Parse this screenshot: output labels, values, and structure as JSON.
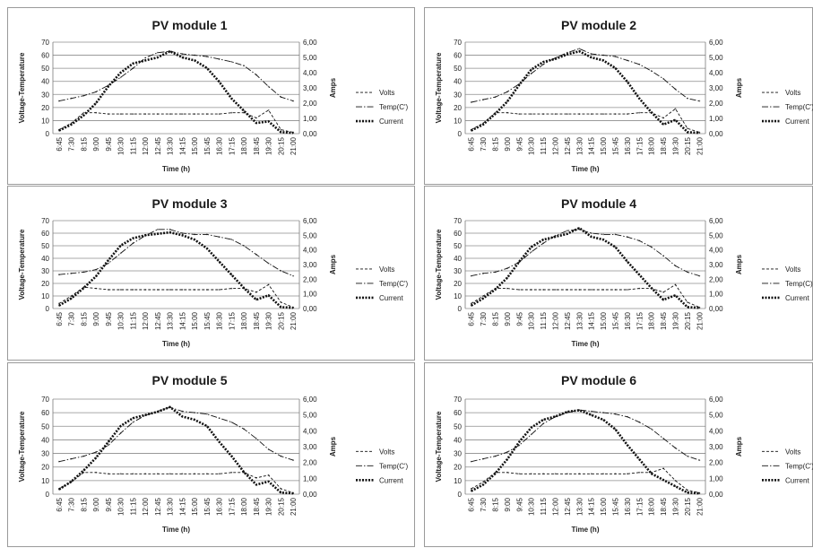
{
  "chart_data": [
    {
      "type": "line",
      "title": "PV module 1",
      "xlabel": "Time (h)",
      "ylabel": "Voltage-Temperature",
      "y2label": "Amps",
      "ylim": [
        0,
        70
      ],
      "y2lim": [
        0,
        6
      ],
      "yticks": [
        "0",
        "10",
        "20",
        "30",
        "40",
        "50",
        "60",
        "70"
      ],
      "y2ticks": [
        "0,00",
        "1,00",
        "2,00",
        "3,00",
        "4,00",
        "5,00",
        "6,00"
      ],
      "categories": [
        "6:45",
        "7:30",
        "8:15",
        "9:00",
        "9:45",
        "10:30",
        "11:15",
        "12:00",
        "12:45",
        "13:30",
        "14:15",
        "15:00",
        "15:45",
        "16:30",
        "17:15",
        "18:00",
        "18:45",
        "19:30",
        "20:15",
        "21:00"
      ],
      "series": [
        {
          "name": "Volts",
          "axis": "left",
          "values": [
            3,
            8,
            16,
            16,
            15,
            15,
            15,
            15,
            15,
            15,
            15,
            15,
            15,
            15,
            16,
            16,
            12,
            18,
            3,
            1
          ]
        },
        {
          "name": "Temp(C')",
          "axis": "left",
          "values": [
            25,
            27,
            29,
            32,
            37,
            43,
            50,
            58,
            62,
            63,
            61,
            60,
            59,
            57,
            55,
            52,
            45,
            36,
            28,
            25
          ]
        },
        {
          "name": "Current",
          "axis": "right",
          "values": [
            0.2,
            0.6,
            1.2,
            2.0,
            3.1,
            4.0,
            4.6,
            4.8,
            5.0,
            5.4,
            5.0,
            4.8,
            4.3,
            3.4,
            2.3,
            1.5,
            0.7,
            0.8,
            0.1,
            0.05
          ]
        }
      ],
      "legend_position": "right"
    },
    {
      "type": "line",
      "title": "PV module 2",
      "xlabel": "Time (h)",
      "ylabel": "Voltage-Temperature",
      "y2label": "Amps",
      "ylim": [
        0,
        70
      ],
      "y2lim": [
        0,
        6
      ],
      "yticks": [
        "0",
        "10",
        "20",
        "30",
        "40",
        "50",
        "60",
        "70"
      ],
      "y2ticks": [
        "0,00",
        "1,00",
        "2,00",
        "3,00",
        "4,00",
        "5,00",
        "6,00"
      ],
      "categories": [
        "6:45",
        "7:30",
        "8:15",
        "9:00",
        "9:45",
        "10:30",
        "11:15",
        "12:00",
        "12:45",
        "13:30",
        "14:15",
        "15:00",
        "15:45",
        "16:30",
        "17:15",
        "18:00",
        "18:45",
        "19:30",
        "20:15",
        "21:00"
      ],
      "series": [
        {
          "name": "Volts",
          "axis": "left",
          "values": [
            3,
            8,
            16,
            16,
            15,
            15,
            15,
            15,
            15,
            15,
            15,
            15,
            15,
            15,
            16,
            16,
            12,
            19,
            4,
            1
          ]
        },
        {
          "name": "Temp(C')",
          "axis": "left",
          "values": [
            24,
            26,
            28,
            32,
            38,
            46,
            53,
            58,
            62,
            65,
            61,
            60,
            59,
            56,
            53,
            48,
            42,
            34,
            27,
            25
          ]
        },
        {
          "name": "Current",
          "axis": "right",
          "values": [
            0.2,
            0.6,
            1.3,
            2.1,
            3.2,
            4.2,
            4.7,
            4.9,
            5.2,
            5.4,
            5.0,
            4.8,
            4.3,
            3.4,
            2.3,
            1.4,
            0.6,
            0.9,
            0.1,
            0.05
          ]
        }
      ],
      "legend_position": "right"
    },
    {
      "type": "line",
      "title": "PV module 3",
      "xlabel": "Time (h)",
      "ylabel": "Voltage-Temperature",
      "y2label": "Amps",
      "ylim": [
        0,
        70
      ],
      "y2lim": [
        0,
        6
      ],
      "yticks": [
        "0",
        "10",
        "20",
        "30",
        "40",
        "50",
        "60",
        "70"
      ],
      "y2ticks": [
        "0,00",
        "1,00",
        "2,00",
        "3,00",
        "4,00",
        "5,00",
        "6,00"
      ],
      "categories": [
        "6:45",
        "7:30",
        "8:15",
        "9:00",
        "9:45",
        "10:30",
        "11:15",
        "12:00",
        "12:45",
        "13:30",
        "14:15",
        "15:00",
        "15:45",
        "16:30",
        "17:15",
        "18:00",
        "18:45",
        "19:30",
        "20:15",
        "21:00"
      ],
      "series": [
        {
          "name": "Volts",
          "axis": "left",
          "values": [
            4,
            10,
            17,
            16,
            15,
            15,
            15,
            15,
            15,
            15,
            15,
            15,
            15,
            15,
            16,
            16,
            13,
            19,
            5,
            1
          ]
        },
        {
          "name": "Temp(C')",
          "axis": "left",
          "values": [
            27,
            28,
            29,
            31,
            36,
            44,
            52,
            58,
            63,
            63,
            60,
            59,
            59,
            57,
            55,
            50,
            43,
            36,
            30,
            26
          ]
        },
        {
          "name": "Current",
          "axis": "right",
          "values": [
            0.2,
            0.7,
            1.4,
            2.2,
            3.3,
            4.3,
            4.8,
            5.0,
            5.1,
            5.2,
            5.0,
            4.7,
            4.1,
            3.2,
            2.3,
            1.4,
            0.6,
            0.9,
            0.1,
            0.05
          ]
        }
      ],
      "legend_position": "right"
    },
    {
      "type": "line",
      "title": "PV module 4",
      "xlabel": "Time (h)",
      "ylabel": "Voltage-Temperature",
      "y2label": "Amps",
      "ylim": [
        0,
        70
      ],
      "y2lim": [
        0,
        6
      ],
      "yticks": [
        "0",
        "10",
        "20",
        "30",
        "40",
        "50",
        "60",
        "70"
      ],
      "y2ticks": [
        "0,00",
        "1,00",
        "2,00",
        "3,00",
        "4,00",
        "5,00",
        "6,00"
      ],
      "categories": [
        "6:45",
        "7:30",
        "8:15",
        "9:00",
        "9:45",
        "10:30",
        "11:15",
        "12:00",
        "12:45",
        "13:30",
        "14:15",
        "15:00",
        "15:45",
        "16:30",
        "17:15",
        "18:00",
        "18:45",
        "19:30",
        "20:15",
        "21:00"
      ],
      "series": [
        {
          "name": "Volts",
          "axis": "left",
          "values": [
            4,
            10,
            16,
            16,
            15,
            15,
            15,
            15,
            15,
            15,
            15,
            15,
            15,
            15,
            16,
            16,
            13,
            19,
            5,
            1
          ]
        },
        {
          "name": "Temp(C)",
          "axis": "left",
          "values": [
            26,
            28,
            29,
            32,
            37,
            45,
            52,
            58,
            62,
            63,
            60,
            59,
            59,
            57,
            54,
            49,
            42,
            34,
            29,
            26
          ]
        },
        {
          "name": "Current",
          "axis": "right",
          "values": [
            0.2,
            0.7,
            1.3,
            2.1,
            3.2,
            4.2,
            4.7,
            4.9,
            5.1,
            5.5,
            4.9,
            4.7,
            4.2,
            3.2,
            2.3,
            1.4,
            0.6,
            0.9,
            0.1,
            0.05
          ]
        }
      ],
      "legend_position": "right"
    },
    {
      "type": "line",
      "title": "PV module 5",
      "xlabel": "Time (h)",
      "ylabel": "Voltage-Temperature",
      "y2label": "Amps",
      "ylim": [
        0,
        70
      ],
      "y2lim": [
        0,
        6
      ],
      "yticks": [
        "0",
        "10",
        "20",
        "30",
        "40",
        "50",
        "60",
        "70"
      ],
      "y2ticks": [
        "0,00",
        "1,00",
        "2,00",
        "3,00",
        "4,00",
        "5,00",
        "6,00"
      ],
      "categories": [
        "6:45",
        "7:30",
        "8:15",
        "9:00",
        "9:45",
        "10:30",
        "11:15",
        "12:00",
        "12:45",
        "13:30",
        "14:15",
        "15:00",
        "15:45",
        "16:30",
        "17:15",
        "18:00",
        "18:45",
        "19:30",
        "20:15",
        "21:00"
      ],
      "series": [
        {
          "name": "Volts",
          "axis": "left",
          "values": [
            4,
            9,
            16,
            16,
            15,
            15,
            15,
            15,
            15,
            15,
            15,
            15,
            15,
            15,
            16,
            16,
            12,
            14,
            4,
            1
          ]
        },
        {
          "name": "Temp(C')",
          "axis": "left",
          "values": [
            24,
            26,
            28,
            31,
            36,
            45,
            53,
            58,
            61,
            64,
            61,
            60,
            59,
            56,
            53,
            48,
            41,
            33,
            28,
            25
          ]
        },
        {
          "name": "Current",
          "axis": "right",
          "values": [
            0.3,
            0.8,
            1.5,
            2.3,
            3.3,
            4.3,
            4.8,
            5.0,
            5.2,
            5.5,
            4.9,
            4.7,
            4.3,
            3.3,
            2.4,
            1.4,
            0.6,
            0.8,
            0.1,
            0.05
          ]
        }
      ],
      "legend_position": "right"
    },
    {
      "type": "line",
      "title": "PV module 6",
      "xlabel": "Time (h)",
      "ylabel": "Voltage-Temperature",
      "y2label": "Amps",
      "ylim": [
        0,
        70
      ],
      "y2lim": [
        0,
        6
      ],
      "yticks": [
        "0",
        "10",
        "20",
        "30",
        "40",
        "50",
        "60",
        "70"
      ],
      "y2ticks": [
        "0,00",
        "1,00",
        "2,00",
        "3,00",
        "4,00",
        "5,00",
        "6,00"
      ],
      "categories": [
        "6:45",
        "7:30",
        "8:15",
        "9:00",
        "9:45",
        "10:30",
        "11:15",
        "12:00",
        "12:45",
        "13:30",
        "14:15",
        "15:00",
        "15:45",
        "16:30",
        "17:15",
        "18:00",
        "18:45",
        "19:30",
        "20:15",
        "21:00"
      ],
      "series": [
        {
          "name": "Volts",
          "axis": "left",
          "values": [
            4,
            9,
            16,
            16,
            15,
            15,
            15,
            15,
            15,
            15,
            15,
            15,
            15,
            15,
            16,
            16,
            19,
            10,
            3,
            1
          ]
        },
        {
          "name": "Temp(C')",
          "axis": "left",
          "values": [
            24,
            26,
            28,
            31,
            36,
            44,
            52,
            57,
            60,
            62,
            61,
            60,
            59,
            57,
            53,
            48,
            41,
            34,
            28,
            25
          ]
        },
        {
          "name": "Current",
          "axis": "right",
          "values": [
            0.2,
            0.6,
            1.3,
            2.2,
            3.3,
            4.2,
            4.7,
            4.9,
            5.2,
            5.3,
            5.0,
            4.7,
            4.1,
            3.1,
            2.2,
            1.3,
            0.9,
            0.5,
            0.1,
            0.05
          ]
        }
      ],
      "legend_position": "right"
    }
  ]
}
